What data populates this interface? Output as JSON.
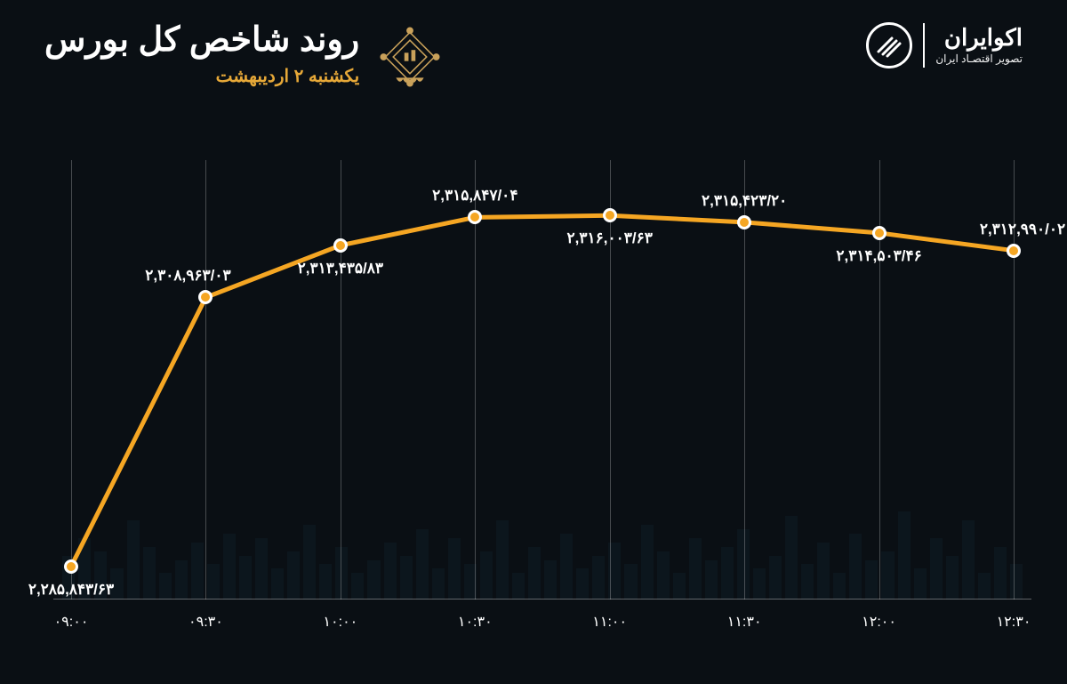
{
  "brand": {
    "name": "اکوایران",
    "tagline": "تصویر اقتصـاد ایران"
  },
  "chart": {
    "title": "روند شاخص کل بورس",
    "subtitle": "یکشنبه ۲ اردیبهشت",
    "type": "line",
    "line_color": "#f5a623",
    "line_width": 5,
    "marker_fill": "#f5a623",
    "marker_stroke": "#ffffff",
    "marker_radius": 8,
    "background_color": "#0a0f14",
    "grid_color": "rgba(255,255,255,0.25)",
    "label_color": "#ffffff",
    "label_fontsize": 17,
    "xlabel_fontsize": 16,
    "y_min": 2283000,
    "y_max": 2320000,
    "points": [
      {
        "time": "۰۹:۰۰",
        "value": 2285843.63,
        "label": "۲,۲۸۵,۸۴۳/۶۳",
        "label_pos": "below"
      },
      {
        "time": "۰۹:۳۰",
        "value": 2308963.03,
        "label": "۲,۳۰۸,۹۶۳/۰۳",
        "label_pos": "above-left"
      },
      {
        "time": "۱۰:۰۰",
        "value": 2313435.83,
        "label": "۲,۳۱۳,۴۳۵/۸۳",
        "label_pos": "below"
      },
      {
        "time": "۱۰:۳۰",
        "value": 2315847.04,
        "label": "۲,۳۱۵,۸۴۷/۰۴",
        "label_pos": "above"
      },
      {
        "time": "۱۱:۰۰",
        "value": 2316003.63,
        "label": "۲,۳۱۶,۰۰۳/۶۳",
        "label_pos": "below"
      },
      {
        "time": "۱۱:۳۰",
        "value": 2315423.2,
        "label": "۲,۳۱۵,۴۲۳/۲۰",
        "label_pos": "above"
      },
      {
        "time": "۱۲:۰۰",
        "value": 2314503.46,
        "label": "۲,۳۱۴,۵۰۳/۴۶",
        "label_pos": "below"
      },
      {
        "time": "۱۲:۳۰",
        "value": 2312990.02,
        "label": "۲,۳۱۲,۹۹۰/۰۲",
        "label_pos": "above-right"
      }
    ],
    "bg_bar_heights_pct": [
      8,
      12,
      6,
      18,
      10,
      14,
      7,
      20,
      11,
      9,
      15,
      6,
      13,
      8,
      19,
      10,
      7,
      16,
      12,
      9,
      14,
      6,
      11,
      17,
      8,
      13,
      10,
      7,
      15,
      9,
      12,
      6,
      18,
      11,
      8,
      14,
      7,
      16,
      10,
      13,
      9,
      6,
      12,
      8,
      17,
      11,
      7,
      14,
      10,
      15,
      8,
      13,
      9,
      6,
      12,
      18,
      7,
      11,
      14,
      10
    ]
  }
}
